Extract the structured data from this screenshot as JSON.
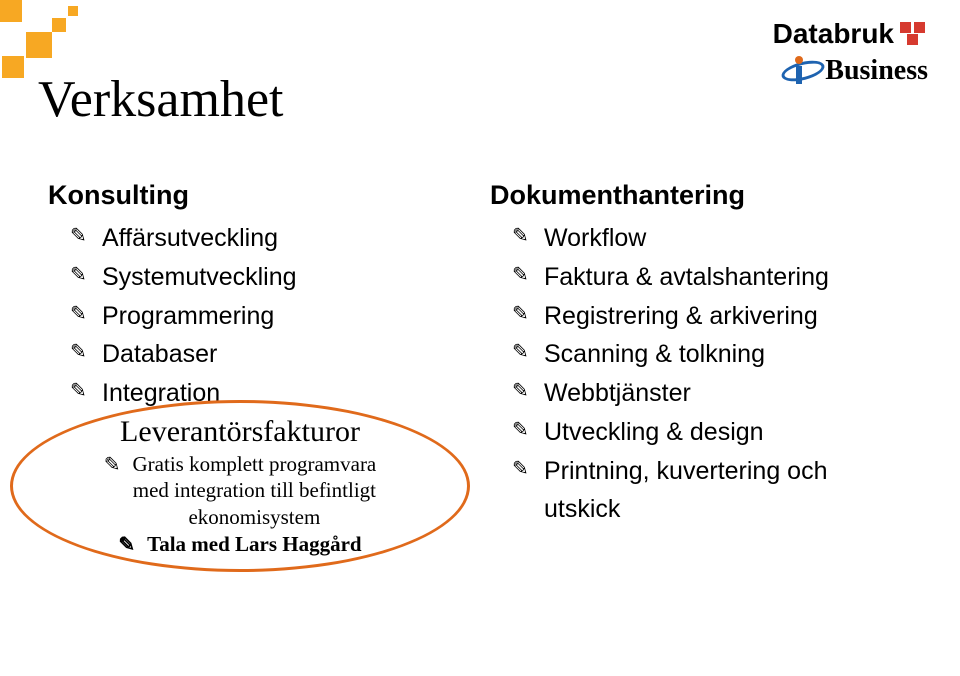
{
  "colors": {
    "accent_orange": "#f7a823",
    "callout_border": "#e06a1b",
    "logo_red": "#d63a2f",
    "logo_blue": "#1e63b0",
    "background": "#ffffff",
    "text": "#000000"
  },
  "logos": {
    "databruk": "Databruk",
    "ibusiness": "Business"
  },
  "title": "Verksamhet",
  "left": {
    "heading": "Konsulting",
    "items": [
      "Affärsutveckling",
      "Systemutveckling",
      "Programmering",
      "Databaser",
      "Integration"
    ]
  },
  "callout": {
    "title": "Leverantörsfakturor",
    "line1": "Gratis komplett programvara",
    "line2": "med integration till befintligt",
    "line3": "ekonomisystem",
    "last": "Tala med Lars Haggård"
  },
  "right": {
    "heading": "Dokumenthantering",
    "items": [
      "Workflow",
      "Faktura & avtalshantering",
      "Registrering & arkivering",
      "Scanning & tolkning",
      " Webbtjänster",
      " Utveckling & design",
      "Printning, kuvertering och utskick"
    ]
  }
}
